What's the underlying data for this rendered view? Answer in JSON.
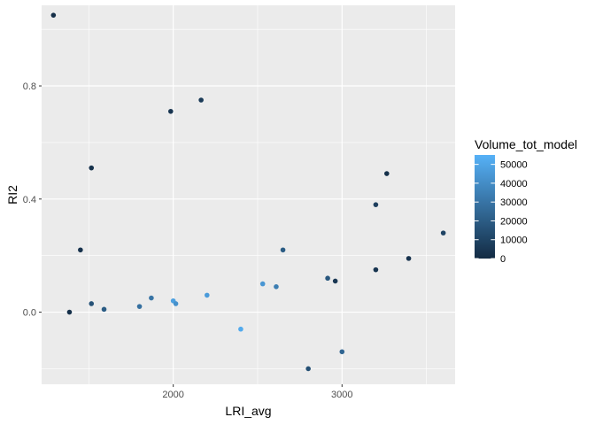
{
  "chart_data": {
    "type": "scatter",
    "xlabel": "LRI_avg",
    "ylabel": "RI2",
    "xlim": [
      1220,
      3670
    ],
    "ylim": [
      -0.255,
      1.085
    ],
    "x_ticks": [
      {
        "value": 2000,
        "label": "2000"
      },
      {
        "value": 3000,
        "label": "3000"
      }
    ],
    "y_ticks": [
      {
        "value": 0.0,
        "label": "0.0"
      },
      {
        "value": 0.4,
        "label": "0.4"
      },
      {
        "value": 0.8,
        "label": "0.8"
      }
    ],
    "grid": true,
    "color_scale": {
      "variable": "Volume_tot_model",
      "low_color": "#132b43",
      "high_color": "#56b1f7",
      "range": [
        0,
        55000
      ],
      "breaks": [
        0,
        10000,
        20000,
        30000,
        40000,
        50000
      ],
      "break_labels": [
        "0",
        "10000",
        "20000",
        "30000",
        "40000",
        "50000"
      ],
      "legend_position": "right"
    },
    "points": [
      {
        "x": 1290,
        "y": 1.05,
        "color_value": 1500
      },
      {
        "x": 1385,
        "y": 0.0,
        "color_value": 2000
      },
      {
        "x": 1450,
        "y": 0.22,
        "color_value": 3000
      },
      {
        "x": 1515,
        "y": 0.51,
        "color_value": 2500
      },
      {
        "x": 1515,
        "y": 0.03,
        "color_value": 16000
      },
      {
        "x": 1590,
        "y": 0.01,
        "color_value": 20000
      },
      {
        "x": 1800,
        "y": 0.02,
        "color_value": 28000
      },
      {
        "x": 1870,
        "y": 0.05,
        "color_value": 30000
      },
      {
        "x": 1985,
        "y": 0.71,
        "color_value": 4000
      },
      {
        "x": 2000,
        "y": 0.04,
        "color_value": 48000
      },
      {
        "x": 2015,
        "y": 0.03,
        "color_value": 42000
      },
      {
        "x": 2165,
        "y": 0.75,
        "color_value": 6000
      },
      {
        "x": 2200,
        "y": 0.06,
        "color_value": 46000
      },
      {
        "x": 2400,
        "y": -0.06,
        "color_value": 52000
      },
      {
        "x": 2530,
        "y": 0.1,
        "color_value": 44000
      },
      {
        "x": 2610,
        "y": 0.09,
        "color_value": 34000
      },
      {
        "x": 2650,
        "y": 0.22,
        "color_value": 20000
      },
      {
        "x": 2800,
        "y": -0.2,
        "color_value": 15000
      },
      {
        "x": 2915,
        "y": 0.12,
        "color_value": 18000
      },
      {
        "x": 2960,
        "y": 0.11,
        "color_value": 5000
      },
      {
        "x": 3000,
        "y": -0.14,
        "color_value": 24000
      },
      {
        "x": 3200,
        "y": 0.38,
        "color_value": 8000
      },
      {
        "x": 3200,
        "y": 0.15,
        "color_value": 4000
      },
      {
        "x": 3265,
        "y": 0.49,
        "color_value": 2000
      },
      {
        "x": 3395,
        "y": 0.19,
        "color_value": 3000
      },
      {
        "x": 3600,
        "y": 0.28,
        "color_value": 10000
      }
    ]
  }
}
